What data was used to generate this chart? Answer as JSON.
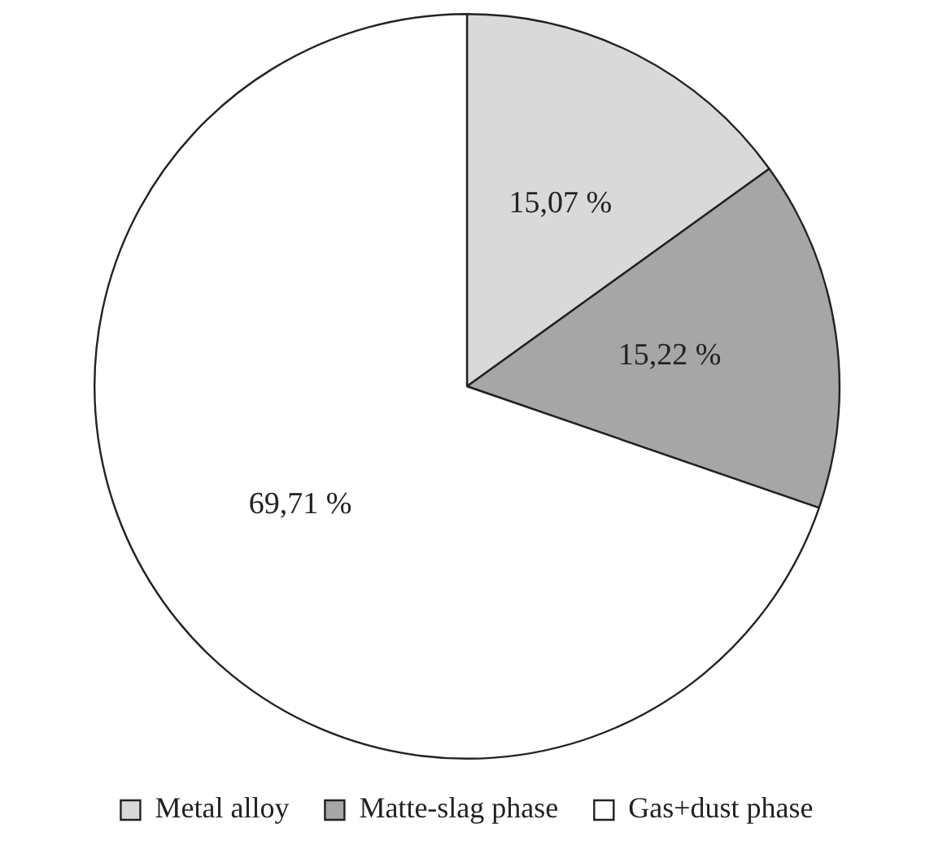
{
  "chart_data": {
    "type": "pie",
    "categories": [
      "Metal alloy",
      "Matte-slag phase",
      "Gas+dust phase"
    ],
    "values": [
      15.07,
      15.22,
      69.71
    ],
    "colors": [
      "#d9d9d9",
      "#a6a6a6",
      "#ffffff"
    ],
    "value_labels": [
      "15,07 %",
      "15,22 %",
      "69,71 %"
    ],
    "legend": "bottom"
  }
}
